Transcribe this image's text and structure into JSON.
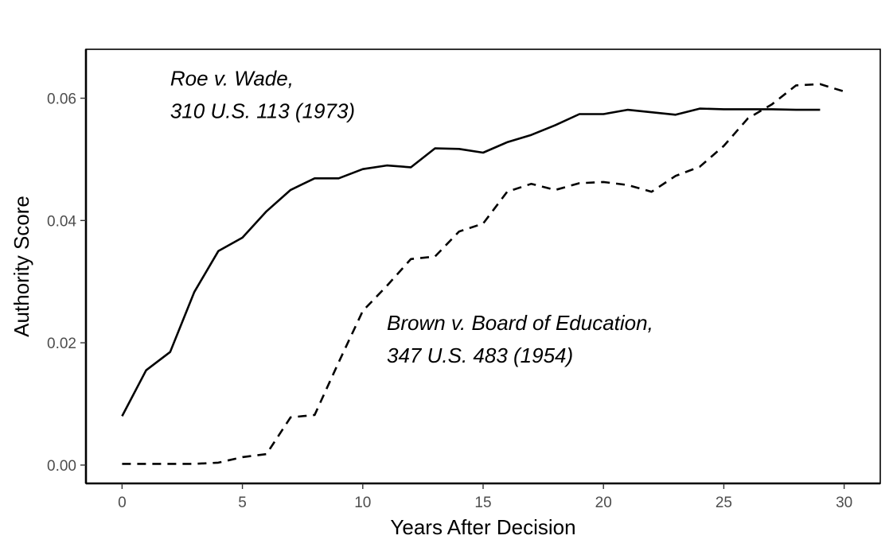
{
  "chart_data": {
    "type": "line",
    "xlabel": "Years After Decision",
    "ylabel": "Authority Score",
    "xlim": [
      -1.5,
      31.5
    ],
    "ylim": [
      -0.003,
      0.068
    ],
    "x_ticks": [
      0,
      5,
      10,
      15,
      20,
      25,
      30
    ],
    "x_tick_labels": [
      "0",
      "5",
      "10",
      "15",
      "20",
      "25",
      "30"
    ],
    "y_ticks": [
      0.0,
      0.02,
      0.04,
      0.06
    ],
    "y_tick_labels": [
      "0.00",
      "0.02",
      "0.04",
      "0.06"
    ],
    "grid": false,
    "legend": "none",
    "series": [
      {
        "line_style": "solid",
        "x": [
          0,
          1,
          2,
          3,
          4,
          5,
          6,
          7,
          8,
          9,
          10,
          11,
          12,
          13,
          14,
          15,
          16,
          17,
          18,
          19,
          20,
          21,
          22,
          23,
          24,
          25,
          26,
          27,
          28,
          29
        ],
        "values": [
          0.008,
          0.0155,
          0.0185,
          0.0283,
          0.035,
          0.0372,
          0.0415,
          0.045,
          0.0469,
          0.0469,
          0.0484,
          0.049,
          0.0487,
          0.0518,
          0.0517,
          0.0511,
          0.0528,
          0.054,
          0.0556,
          0.0574,
          0.0574,
          0.0581,
          0.0577,
          0.0573,
          0.0583,
          0.0582,
          0.0582,
          0.0582,
          0.0581,
          0.0581
        ]
      },
      {
        "line_style": "dashed",
        "x": [
          0,
          1,
          2,
          3,
          4,
          5,
          6,
          7,
          8,
          9,
          10,
          11,
          12,
          13,
          14,
          15,
          16,
          17,
          18,
          19,
          20,
          21,
          22,
          23,
          24,
          25,
          26,
          27,
          28,
          29,
          30
        ],
        "values": [
          0.0002,
          0.0002,
          0.0002,
          0.0002,
          0.0004,
          0.0013,
          0.0018,
          0.0078,
          0.0082,
          0.0168,
          0.0252,
          0.0293,
          0.0337,
          0.0341,
          0.0382,
          0.0395,
          0.0447,
          0.046,
          0.045,
          0.0461,
          0.0463,
          0.0458,
          0.0447,
          0.0473,
          0.0488,
          0.0522,
          0.0567,
          0.059,
          0.0621,
          0.0623,
          0.0611
        ]
      }
    ],
    "annotations": [
      {
        "lines": [
          "Roe v. Wade,",
          "310 U.S. 113 (1973)"
        ],
        "x": 2,
        "y": 0.0621
      },
      {
        "lines": [
          "Brown v. Board of Education,",
          "347 U.S. 483 (1954)"
        ],
        "x": 11,
        "y": 0.0221
      }
    ]
  }
}
